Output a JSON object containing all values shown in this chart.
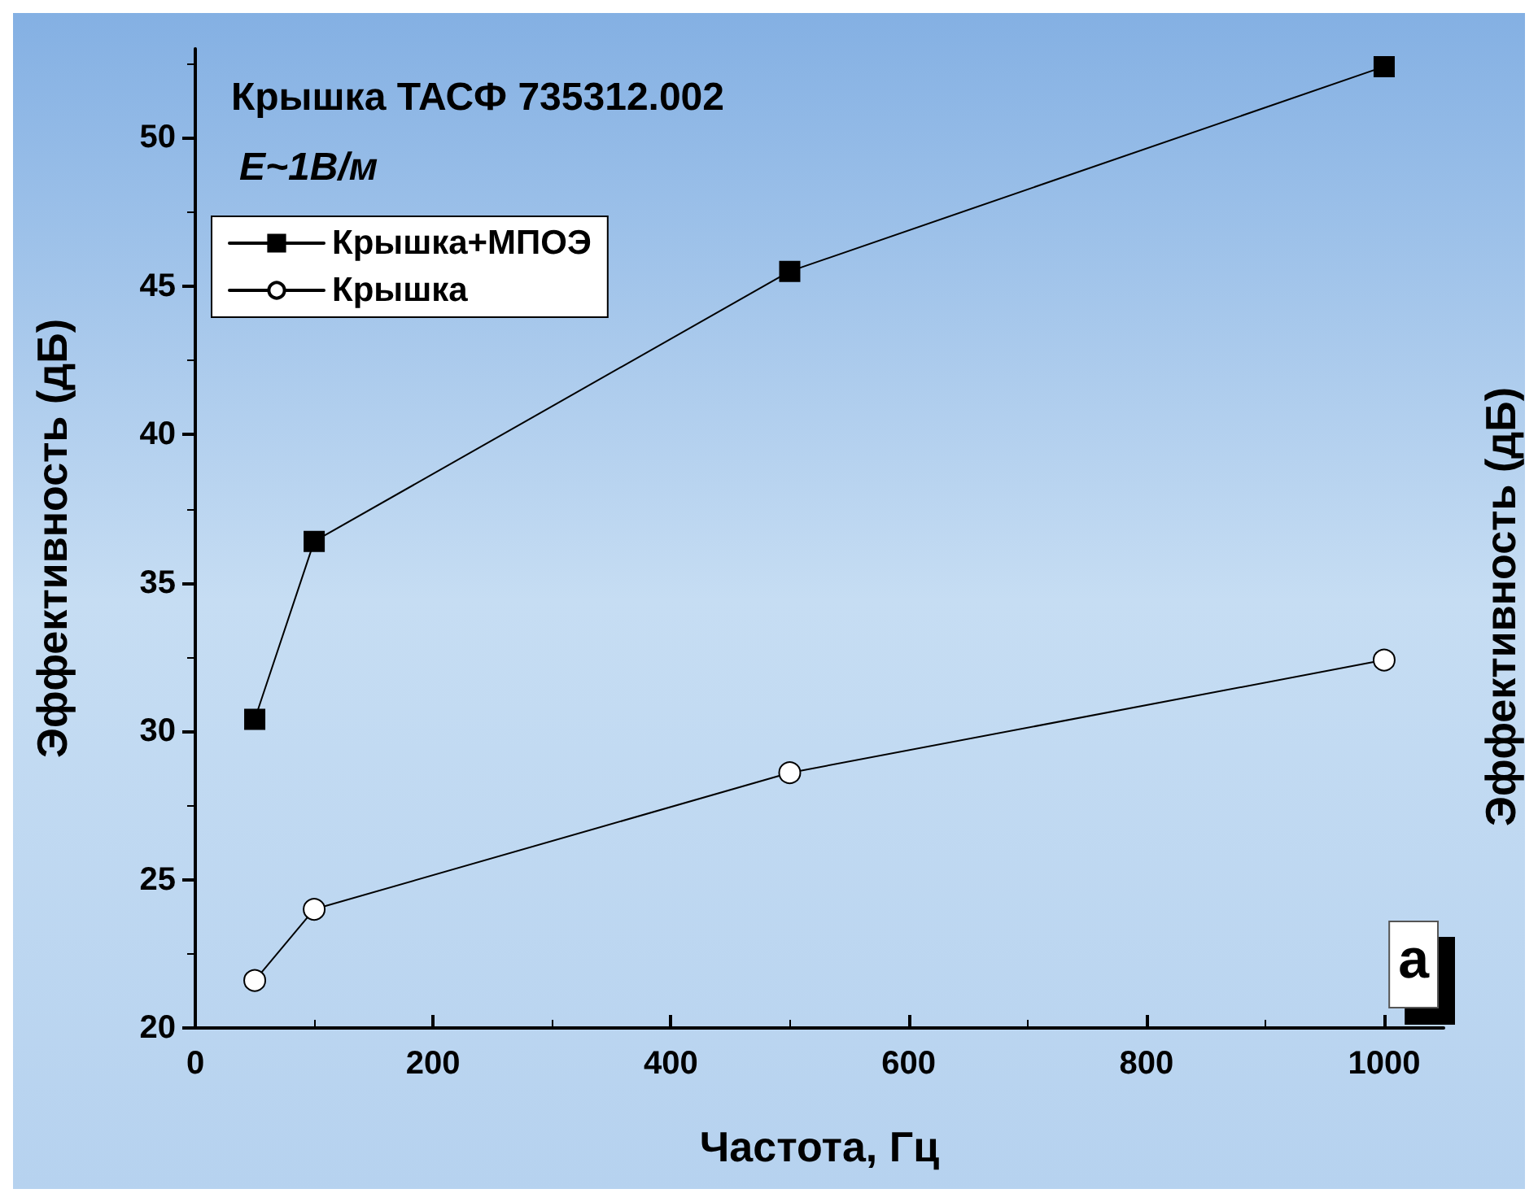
{
  "chart_data": {
    "type": "line",
    "title": "Крышка ТАСФ 735312.002",
    "subtitle": "E~1В/м",
    "xlabel": "Частота, Гц",
    "ylabel": "Эффективность (дБ)",
    "y2label": "Эффективность (дБ)",
    "x": [
      50,
      100,
      500,
      1000
    ],
    "series": [
      {
        "name": "Крышка+МПОЭ",
        "color": "#000000",
        "marker": "square",
        "values": [
          30.4,
          36.4,
          45.5,
          52.4
        ]
      },
      {
        "name": "Крышка",
        "color": "#000000",
        "marker": "circle",
        "values": [
          21.6,
          24.0,
          28.6,
          32.4
        ]
      }
    ],
    "xlim": [
      0,
      1050
    ],
    "xticks": [
      0,
      200,
      400,
      600,
      800,
      1000
    ],
    "ylim": [
      20,
      53
    ],
    "yticks": [
      20,
      25,
      30,
      35,
      40,
      45,
      50
    ],
    "annotations": [
      "a"
    ],
    "legend": "top left",
    "grid": false,
    "line_style": "solid"
  }
}
